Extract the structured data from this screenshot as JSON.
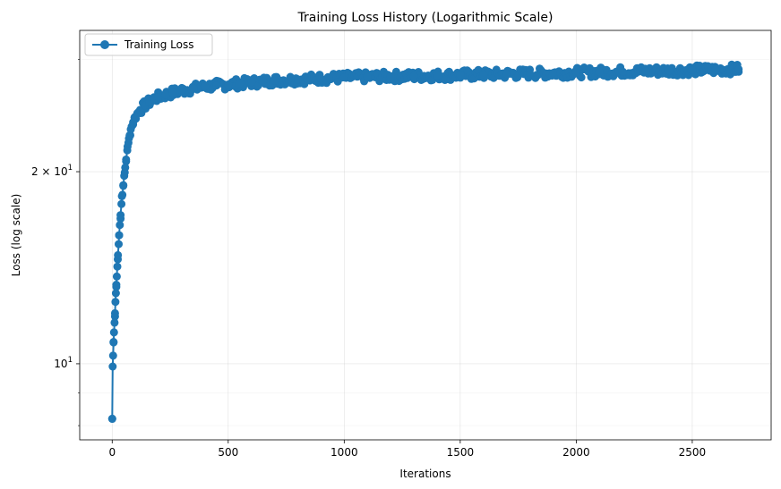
{
  "chart_data": {
    "type": "line",
    "title": "Training Loss History (Logarithmic Scale)",
    "xlabel": "Iterations",
    "ylabel": "Loss (log scale)",
    "yscale": "log",
    "xlim": [
      -140,
      2840
    ],
    "ylim": [
      7.6,
      33.3
    ],
    "x_ticks": [
      {
        "value": 0,
        "label": "0"
      },
      {
        "value": 500,
        "label": "500"
      },
      {
        "value": 1000,
        "label": "1000"
      },
      {
        "value": 1500,
        "label": "1500"
      },
      {
        "value": 2000,
        "label": "2000"
      },
      {
        "value": 2500,
        "label": "2500"
      }
    ],
    "y_major_ticks": [
      {
        "value": 10,
        "base": "10",
        "exp": "1",
        "mantissa": ""
      },
      {
        "value": 20,
        "base": "10",
        "exp": "1",
        "mantissa": "2 × "
      }
    ],
    "y_minor_ticks": [
      8,
      9,
      30
    ],
    "grid": true,
    "legend": {
      "position": "top-left",
      "entries": [
        "Training Loss"
      ]
    },
    "series": [
      {
        "name": "Training Loss",
        "color": "#1f77b4",
        "marker": "circle",
        "x": [
          0,
          2,
          4,
          6,
          8,
          10,
          12,
          14,
          16,
          18,
          20,
          22,
          25,
          28,
          30,
          33,
          36,
          40,
          44,
          48,
          52,
          56,
          60,
          65,
          70,
          75,
          80,
          90,
          100,
          110,
          120,
          140,
          160,
          180,
          200,
          230,
          260,
          300,
          350,
          400,
          450,
          500,
          550,
          600,
          650,
          700,
          800,
          900,
          1000,
          1100,
          1200,
          1300,
          1400,
          1500,
          1600,
          1700,
          1800,
          1900,
          2000,
          2100,
          2200,
          2300,
          2400,
          2500,
          2600,
          2700
        ],
        "values": [
          8.2,
          9.9,
          10.3,
          10.8,
          11.2,
          11.6,
          12.0,
          12.5,
          12.9,
          13.3,
          13.7,
          14.2,
          14.8,
          15.4,
          15.9,
          16.5,
          17.1,
          17.8,
          18.4,
          19.0,
          19.7,
          20.3,
          20.9,
          21.6,
          22.2,
          22.8,
          23.3,
          23.9,
          24.4,
          24.7,
          25.0,
          25.4,
          25.7,
          26.0,
          26.2,
          26.4,
          26.6,
          26.8,
          27.0,
          27.2,
          27.3,
          27.4,
          27.5,
          27.6,
          27.7,
          27.8,
          27.9,
          28.0,
          28.1,
          28.15,
          28.2,
          28.25,
          28.3,
          28.35,
          28.4,
          28.45,
          28.5,
          28.55,
          28.6,
          28.65,
          28.7,
          28.75,
          28.8,
          28.85,
          28.9,
          28.95
        ]
      }
    ]
  }
}
